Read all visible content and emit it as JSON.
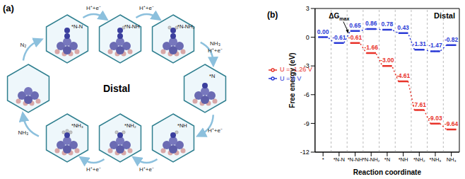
{
  "diagram": {
    "panel_label": "(a)",
    "center_label": "Distal",
    "states": [
      "*N-N",
      "*N-NH",
      "*N-NH₂",
      "*N",
      "*NH",
      "*NH₂",
      "*NH₃"
    ],
    "steps": [
      [
        "N₂"
      ],
      [
        "H⁺+e⁻"
      ],
      [
        "H⁺+e⁻"
      ],
      [
        "NH₃",
        "H⁺+e⁻"
      ],
      [
        "H⁺+e⁻"
      ],
      [
        "H⁺+e⁻"
      ],
      [
        "H⁺+e⁻"
      ],
      [
        "NH₃"
      ]
    ]
  },
  "chart_data": {
    "type": "line",
    "panel_label": "(b)",
    "title": "Distal",
    "x_label": "Reaction coordinate",
    "y_label": "Free energy (eV)",
    "annotations": [
      {
        "text": "ΔG",
        "subscript": "max"
      }
    ],
    "categories": [
      "*",
      "*N-N",
      "*N-NH",
      "*N-NH₂",
      "*N",
      "*NH",
      "*NH₂",
      "*NH₃",
      "NH₃"
    ],
    "series": [
      {
        "name": "U = 0 V",
        "color": "#2b3bd6",
        "line_style": "dotted",
        "values": [
          0.0,
          -0.61,
          0.65,
          0.86,
          0.78,
          0.43,
          -1.31,
          -1.47,
          -0.82
        ],
        "value_labels": [
          "0.00",
          "-0.61",
          "0.65",
          "0.86",
          "0.78",
          "0.43",
          "-1.31",
          "-1.47",
          "-0.82"
        ]
      },
      {
        "name": "U = -1.26 V",
        "color": "#e8332a",
        "line_style": "dotted",
        "values": [
          null,
          null,
          -0.61,
          -1.66,
          -3.0,
          -4.61,
          -7.61,
          -9.03,
          -9.64
        ],
        "value_labels": [
          null,
          null,
          "-0.61",
          "-1.66",
          "-3.00",
          "-4.61",
          "-7.61",
          "-9.03",
          "-9.64"
        ]
      }
    ],
    "ylim": [
      -12,
      3
    ],
    "yticks": [
      -12,
      -9,
      -6,
      -3,
      0,
      3
    ],
    "legend": "upper left",
    "data_labels": true,
    "grid": false
  }
}
